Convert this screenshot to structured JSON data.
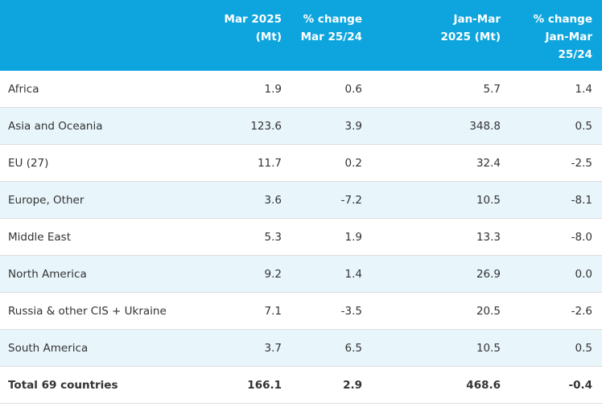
{
  "table": {
    "header": [
      [
        "Mar 2025",
        "(Mt)"
      ],
      [
        "% change",
        "Mar 25/24"
      ],
      [
        "Jan-Mar",
        "2025 (Mt)"
      ],
      [
        "% change",
        "Jan-Mar",
        "25/24"
      ]
    ],
    "rows": [
      [
        "Africa",
        "1.9",
        "0.6",
        "5.7",
        "1.4"
      ],
      [
        "Asia and Oceania",
        "123.6",
        "3.9",
        "348.8",
        "0.5"
      ],
      [
        "EU (27)",
        "11.7",
        "0.2",
        "32.4",
        "-2.5"
      ],
      [
        "Europe, Other",
        "3.6",
        "-7.2",
        "10.5",
        "-8.1"
      ],
      [
        "Middle East",
        "5.3",
        "1.9",
        "13.3",
        "-8.0"
      ],
      [
        "North America",
        "9.2",
        "1.4",
        "26.9",
        "0.0"
      ],
      [
        "Russia & other CIS + Ukraine",
        "7.1",
        "-3.5",
        "20.5",
        "-2.6"
      ],
      [
        "South America",
        "3.7",
        "6.5",
        "10.5",
        "0.5"
      ]
    ],
    "total": [
      "Total 69 countries",
      "166.1",
      "2.9",
      "468.6",
      "-0.4"
    ]
  }
}
